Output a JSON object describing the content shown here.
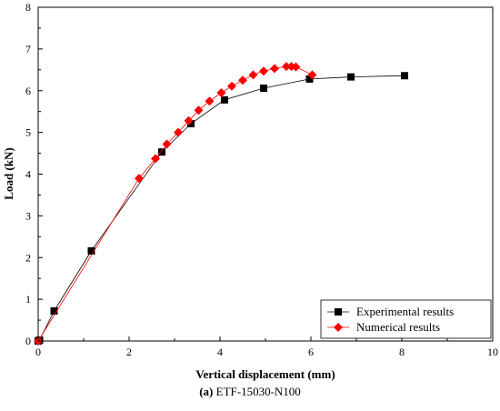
{
  "caption": {
    "label": "(a)",
    "text": "ETF-15030-N100"
  },
  "chart_data": {
    "type": "line",
    "xlabel": "Vertical displacement (mm)",
    "ylabel": "Load (kN)",
    "xlim": [
      0,
      10
    ],
    "ylim": [
      0,
      8
    ],
    "x_ticks": [
      0,
      2,
      4,
      6,
      8,
      10
    ],
    "y_ticks": [
      0,
      1,
      2,
      3,
      4,
      5,
      6,
      7,
      8
    ],
    "grid": false,
    "legend_position": "bottom-right",
    "series": [
      {
        "name": "Experimental results",
        "color": "#000000",
        "marker": "square",
        "x": [
          0.0,
          0.03,
          0.35,
          1.17,
          2.72,
          3.36,
          4.1,
          4.96,
          5.97,
          6.88,
          8.06
        ],
        "y": [
          0.0,
          0.02,
          0.72,
          2.16,
          4.53,
          5.21,
          5.78,
          6.06,
          6.28,
          6.33,
          6.36
        ]
      },
      {
        "name": "Numerical results",
        "color": "#ff0000",
        "marker": "diamond",
        "x": [
          0.0,
          2.22,
          2.58,
          2.83,
          3.08,
          3.31,
          3.53,
          3.77,
          4.03,
          4.26,
          4.5,
          4.73,
          4.96,
          5.2,
          5.46,
          5.57,
          5.67,
          6.03
        ],
        "y": [
          0.0,
          3.9,
          4.37,
          4.72,
          5.0,
          5.28,
          5.53,
          5.75,
          5.95,
          6.11,
          6.25,
          6.38,
          6.47,
          6.53,
          6.58,
          6.58,
          6.57,
          6.38
        ]
      }
    ]
  }
}
